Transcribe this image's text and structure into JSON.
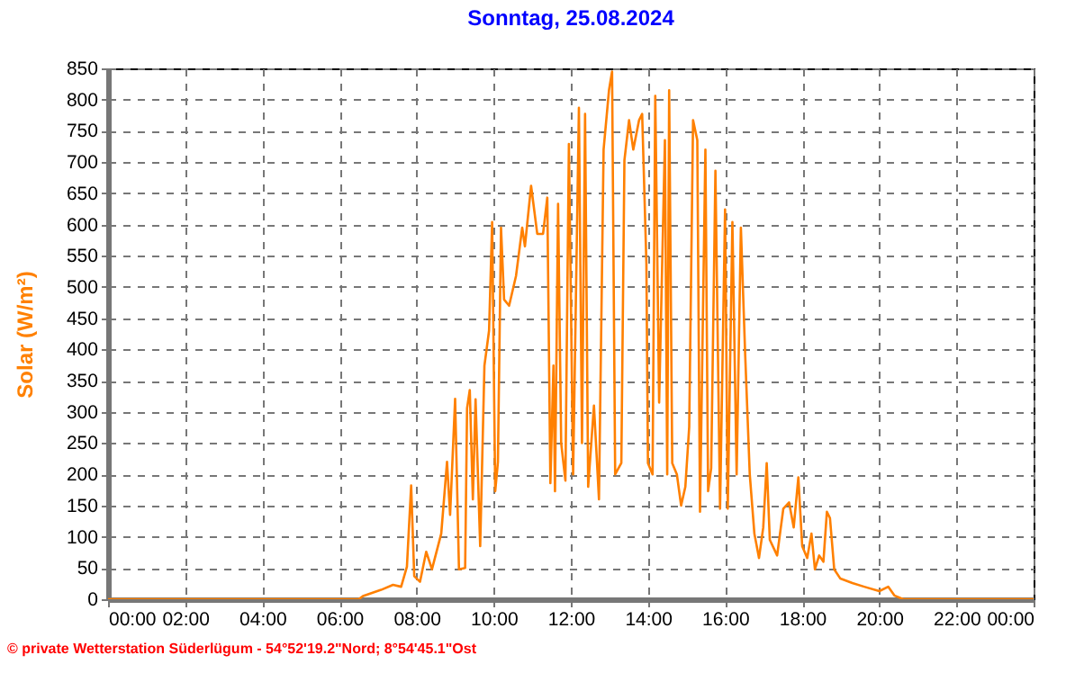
{
  "chart_data": {
    "type": "line",
    "title": "Sonntag, 25.08.2024",
    "ylabel": "Solar  (W/m²)",
    "annotations": [
      "© private Wetterstation Süderlügum - 54°52'19.2\"Nord; 8°54'45.1\"Ost"
    ],
    "xlim": [
      0,
      24
    ],
    "ylim": [
      0,
      850
    ],
    "xticks": [
      {
        "value": 0,
        "label": "00:00"
      },
      {
        "value": 2,
        "label": "02:00"
      },
      {
        "value": 4,
        "label": "04:00"
      },
      {
        "value": 6,
        "label": "06:00"
      },
      {
        "value": 8,
        "label": "08:00"
      },
      {
        "value": 10,
        "label": "10:00"
      },
      {
        "value": 12,
        "label": "12:00"
      },
      {
        "value": 14,
        "label": "14:00"
      },
      {
        "value": 16,
        "label": "16:00"
      },
      {
        "value": 18,
        "label": "18:00"
      },
      {
        "value": 20,
        "label": "20:00"
      },
      {
        "value": 22,
        "label": "22:00"
      },
      {
        "value": 24,
        "label": "00:00"
      }
    ],
    "yticks": [
      0,
      50,
      100,
      150,
      200,
      250,
      300,
      350,
      400,
      450,
      500,
      550,
      600,
      650,
      700,
      750,
      800,
      850
    ],
    "grid": true,
    "line_style": "solid",
    "series": [
      {
        "color": "#ff8000",
        "x": [
          0,
          6.5,
          6.61,
          7.08,
          7.39,
          7.6,
          7.75,
          7.86,
          7.94,
          8.09,
          8.25,
          8.4,
          8.64,
          8.79,
          8.87,
          9.0,
          9.1,
          9.26,
          9.31,
          9.38,
          9.46,
          9.53,
          9.65,
          9.76,
          9.88,
          9.96,
          10.04,
          10.11,
          10.19,
          10.27,
          10.4,
          10.58,
          10.74,
          10.81,
          10.97,
          11.13,
          11.28,
          11.39,
          11.47,
          11.55,
          11.59,
          11.67,
          11.75,
          11.86,
          11.95,
          12.06,
          12.21,
          12.29,
          12.37,
          12.45,
          12.6,
          12.73,
          12.85,
          12.99,
          13.07,
          13.15,
          13.31,
          13.39,
          13.51,
          13.62,
          13.77,
          13.85,
          13.96,
          14.0,
          14.12,
          14.19,
          14.29,
          14.44,
          14.5,
          14.55,
          14.63,
          14.75,
          14.86,
          14.97,
          15.07,
          15.17,
          15.28,
          15.35,
          15.49,
          15.56,
          15.64,
          15.75,
          15.87,
          16.0,
          16.07,
          16.19,
          16.3,
          16.41,
          16.52,
          16.64,
          16.76,
          16.88,
          16.99,
          17.08,
          17.16,
          17.35,
          17.51,
          17.66,
          17.78,
          17.9,
          18.0,
          18.13,
          18.24,
          18.33,
          18.44,
          18.55,
          18.64,
          18.72,
          18.83,
          18.99,
          19.3,
          19.61,
          20.0,
          20.23,
          20.39,
          20.62,
          24
        ],
        "values": [
          0,
          0,
          5,
          15,
          23,
          20,
          52,
          182,
          37,
          28,
          76,
          48,
          105,
          220,
          135,
          321,
          48,
          50,
          306,
          335,
          160,
          320,
          85,
          374,
          430,
          604,
          173,
          220,
          595,
          480,
          470,
          518,
          595,
          565,
          662,
          585,
          585,
          643,
          186,
          374,
          173,
          633,
          250,
          190,
          729,
          200,
          787,
          250,
          777,
          180,
          310,
          160,
          720,
          815,
          845,
          200,
          218,
          703,
          767,
          720,
          767,
          777,
          537,
          218,
          200,
          806,
          315,
          735,
          200,
          815,
          218,
          200,
          150,
          180,
          276,
          767,
          735,
          140,
          720,
          173,
          210,
          686,
          145,
          624,
          145,
          604,
          200,
          595,
          394,
          200,
          105,
          66,
          115,
          218,
          95,
          70,
          145,
          155,
          115,
          195,
          85,
          66,
          105,
          48,
          70,
          60,
          140,
          130,
          48,
          33,
          26,
          20,
          13,
          20,
          6,
          0,
          0
        ]
      }
    ]
  }
}
